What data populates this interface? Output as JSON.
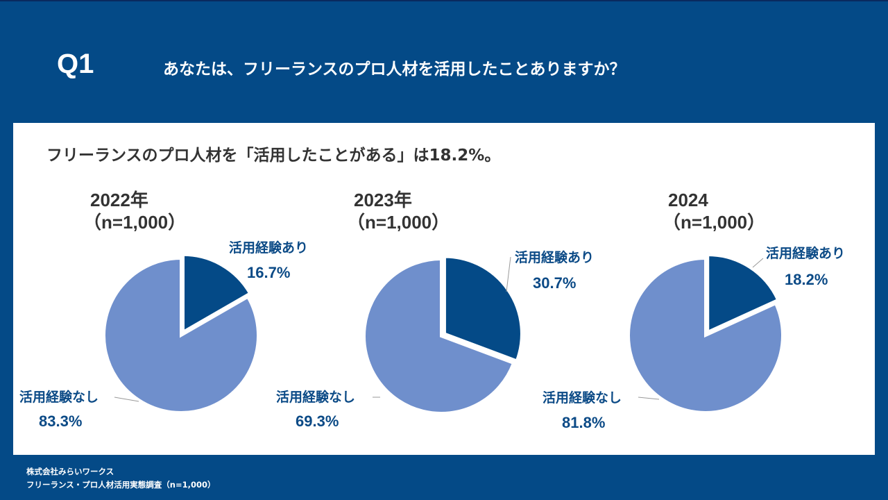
{
  "header": {
    "question_number": "Q1",
    "question_text": "あなたは、フリーランスのプロ人材を活用したことありますか？"
  },
  "panel": {
    "headline": "フリーランスのプロ人材を「活用したことがある」は18.2%。"
  },
  "colors": {
    "background": "#044a87",
    "used": "#044a87",
    "not_used": "#6f8fcc",
    "label_text": "#0b4a86"
  },
  "chart_data": [
    {
      "type": "pie",
      "title": "2022年",
      "subtitle": "（n=1,000）",
      "labels": [
        "活用経験あり",
        "活用経験なし"
      ],
      "values": [
        16.7,
        83.3
      ],
      "value_labels": [
        "16.7%",
        "83.3%"
      ]
    },
    {
      "type": "pie",
      "title": "2023年",
      "subtitle": "（n=1,000）",
      "labels": [
        "活用経験あり",
        "活用経験なし"
      ],
      "values": [
        30.7,
        69.3
      ],
      "value_labels": [
        "30.7%",
        "69.3%"
      ]
    },
    {
      "type": "pie",
      "title": "2024",
      "subtitle": "（n=1,000）",
      "labels": [
        "活用経験あり",
        "活用経験なし"
      ],
      "values": [
        18.2,
        81.8
      ],
      "value_labels": [
        "18.2%",
        "81.8%"
      ]
    }
  ],
  "footer": {
    "company": "株式会社みらいワークス",
    "survey": "フリーランス・プロ人材活用実態調査（n=1,000）"
  }
}
